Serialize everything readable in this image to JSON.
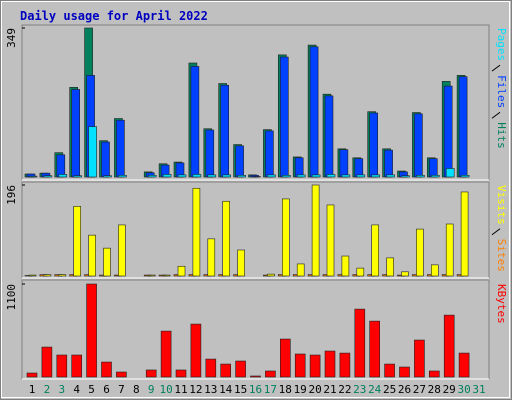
{
  "title": "Daily usage for April 2022",
  "chart_data": [
    {
      "type": "bar",
      "ylim": [
        0,
        349
      ],
      "yticks": [
        349
      ],
      "series": [
        {
          "name": "Hits",
          "color": "#00805c",
          "values": [
            7,
            9,
            57,
            210,
            349,
            85,
            137,
            0,
            12,
            31,
            35,
            267,
            113,
            219,
            76,
            5,
            111,
            286,
            47,
            309,
            194,
            66,
            45,
            153,
            66,
            14,
            151,
            45,
            224,
            238,
            0
          ]
        },
        {
          "name": "Files",
          "color": "#0040ff",
          "values": [
            7,
            9,
            52,
            205,
            238,
            82,
            133,
            0,
            10,
            28,
            33,
            259,
            110,
            215,
            73,
            4,
            108,
            281,
            45,
            305,
            190,
            64,
            43,
            150,
            63,
            12,
            148,
            43,
            213,
            235,
            0
          ]
        },
        {
          "name": "Pages",
          "color": "#00e0ff",
          "values": [
            2,
            3,
            6,
            3,
            118,
            3,
            4,
            0,
            4,
            6,
            5,
            6,
            5,
            5,
            4,
            1,
            5,
            4,
            5,
            5,
            6,
            5,
            5,
            5,
            5,
            3,
            4,
            4,
            20,
            4,
            0
          ]
        }
      ]
    },
    {
      "type": "bar",
      "ylim": [
        0,
        196
      ],
      "yticks": [
        196
      ],
      "series": [
        {
          "name": "Sites",
          "color": "#ff8000",
          "values": [
            1,
            3,
            3,
            3,
            3,
            2,
            2,
            0,
            2,
            2,
            3,
            3,
            3,
            3,
            3,
            0,
            2,
            3,
            3,
            3,
            3,
            3,
            3,
            3,
            3,
            2,
            3,
            3,
            3,
            3,
            0
          ]
        },
        {
          "name": "Visits",
          "color": "#ffff00",
          "values": [
            2,
            3,
            3,
            150,
            88,
            60,
            110,
            0,
            2,
            2,
            21,
            189,
            80,
            161,
            56,
            0,
            4,
            166,
            26,
            196,
            153,
            43,
            17,
            110,
            39,
            9,
            101,
            24,
            112,
            181,
            0
          ]
        }
      ]
    },
    {
      "type": "bar",
      "ylim": [
        0,
        1100
      ],
      "yticks": [
        1100
      ],
      "categories": [
        "1",
        "2",
        "3",
        "4",
        "5",
        "6",
        "7",
        "8",
        "9",
        "10",
        "11",
        "12",
        "13",
        "14",
        "15",
        "16",
        "17",
        "18",
        "19",
        "20",
        "21",
        "22",
        "23",
        "24",
        "25",
        "26",
        "27",
        "28",
        "29",
        "30",
        "31"
      ],
      "category_colors": [
        "#000000",
        "#00805c",
        "#00805c",
        "#000000",
        "#000000",
        "#000000",
        "#000000",
        "#000000",
        "#00805c",
        "#00805c",
        "#000000",
        "#000000",
        "#000000",
        "#000000",
        "#000000",
        "#00805c",
        "#00805c",
        "#000000",
        "#000000",
        "#000000",
        "#000000",
        "#000000",
        "#00805c",
        "#00805c",
        "#000000",
        "#000000",
        "#000000",
        "#000000",
        "#000000",
        "#00805c",
        "#00805c"
      ],
      "series": [
        {
          "name": "KBytes",
          "color": "#ff0000",
          "values": [
            47,
            354,
            260,
            260,
            1100,
            177,
            59,
            0,
            83,
            543,
            83,
            626,
            212,
            153,
            189,
            12,
            71,
            449,
            272,
            260,
            307,
            283,
            803,
            661,
            153,
            118,
            437,
            71,
            732,
            283,
            0
          ]
        }
      ]
    }
  ]
}
